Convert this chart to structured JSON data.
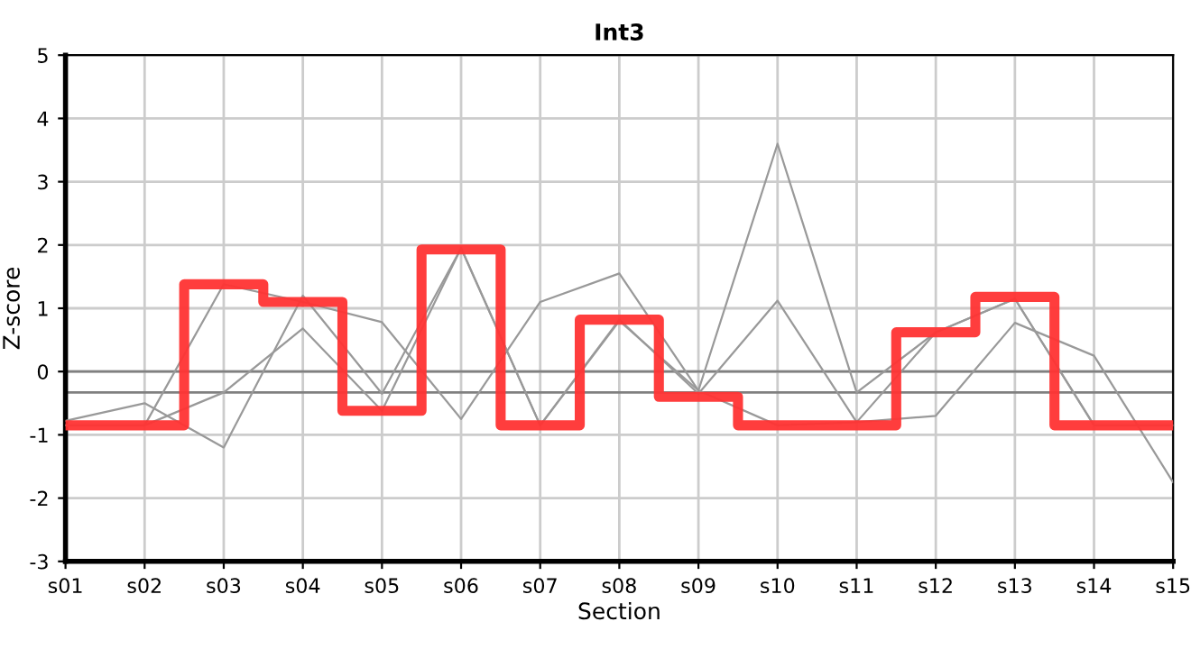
{
  "chart_data": {
    "type": "line",
    "title": "Int3",
    "xlabel": "Section",
    "ylabel": "Z-score",
    "categories": [
      "s01",
      "s02",
      "s03",
      "s04",
      "s05",
      "s06",
      "s07",
      "s08",
      "s09",
      "s10",
      "s11",
      "s12",
      "s13",
      "s14",
      "s15"
    ],
    "series": [
      {
        "color": "#999999",
        "values": [
          -0.78,
          -0.5,
          -1.2,
          1.2,
          -0.35,
          1.95,
          -0.85,
          0.8,
          -0.3,
          3.6,
          -0.33,
          0.62,
          1.15,
          -0.85,
          -0.85
        ]
      },
      {
        "color": "#999999",
        "values": [
          -0.85,
          -0.85,
          1.38,
          1.1,
          0.78,
          -0.75,
          1.1,
          1.55,
          -0.3,
          -0.85,
          -0.8,
          -0.7,
          0.77,
          0.25,
          -1.75
        ]
      },
      {
        "color": "#999999",
        "values": [
          -0.85,
          -0.85,
          -0.33,
          0.68,
          -0.62,
          1.95,
          -0.85,
          0.82,
          -0.35,
          1.12,
          -0.8,
          0.62,
          1.15,
          -0.85,
          -0.85
        ]
      },
      {
        "type": "step",
        "color": "#ff3333",
        "values": [
          -0.85,
          -0.85,
          1.38,
          1.1,
          -0.62,
          1.93,
          -0.85,
          0.82,
          -0.4,
          -0.85,
          -0.85,
          0.62,
          1.18,
          -0.85,
          -0.85
        ]
      }
    ],
    "ylim": [
      -3,
      5
    ],
    "yticks": [
      -3,
      -2,
      -1,
      0,
      1,
      2,
      3,
      4,
      5
    ],
    "grid": true,
    "ref_lines": [
      {
        "axis": "y",
        "value": 0,
        "color": "#808080"
      },
      {
        "axis": "y",
        "value": -0.33,
        "color": "#808080"
      }
    ]
  }
}
